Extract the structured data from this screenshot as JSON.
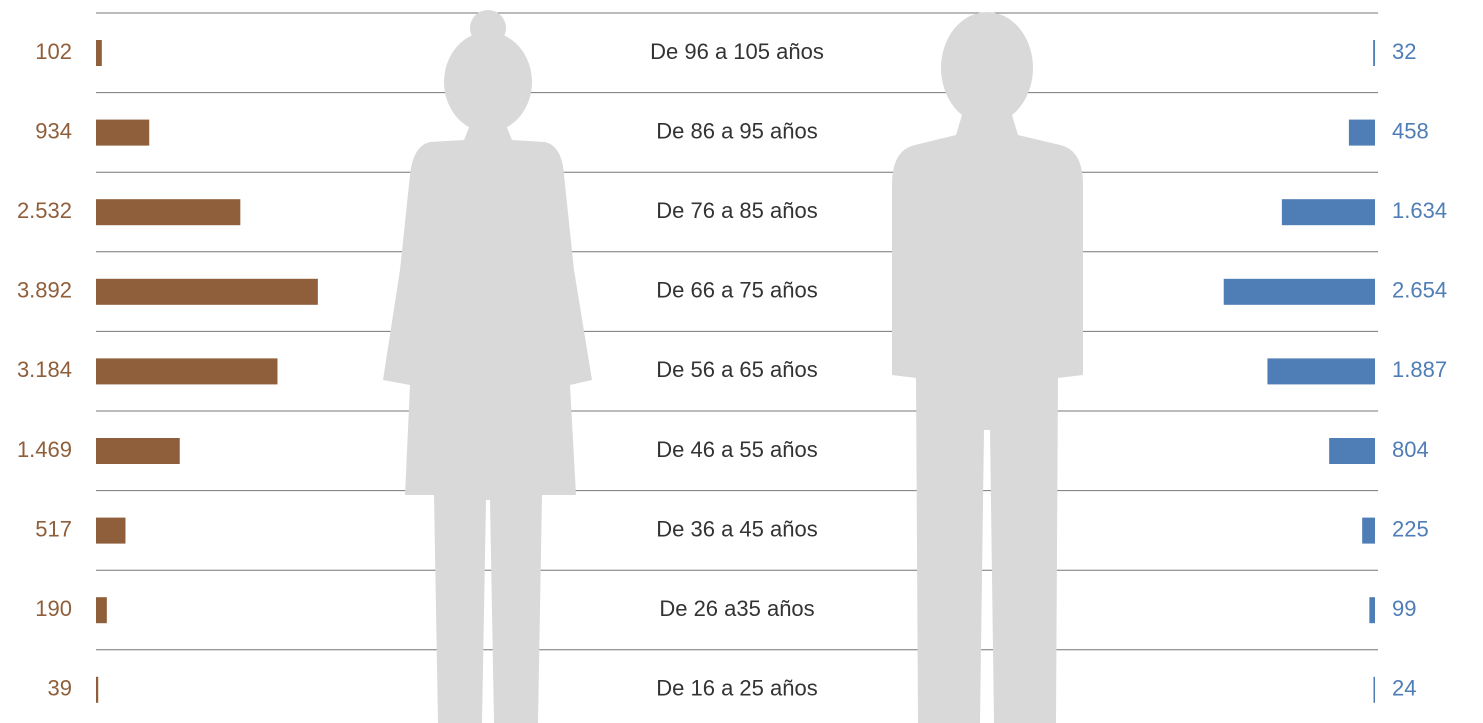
{
  "chart_data": {
    "type": "butterfly",
    "categories": [
      "De 96 a 105 años",
      "De 86 a 95 años",
      "De 76 a 85 años",
      "De 66 a 75 años",
      "De 56 a 65 años",
      "De 46 a 55 años",
      "De 36 a 45 años",
      "De 26 a35 años",
      "De 16 a 25 años"
    ],
    "series": [
      {
        "color": "#8f5e3a",
        "values": [
          102,
          934,
          2532,
          3892,
          3184,
          1469,
          517,
          190,
          39
        ],
        "value_labels": [
          "102",
          "934",
          "2.532",
          "3.892",
          "3.184",
          "1.469",
          "517",
          "190",
          "39"
        ]
      },
      {
        "color": "#4f7db5",
        "values": [
          32,
          458,
          1634,
          2654,
          1887,
          804,
          225,
          99,
          24
        ],
        "value_labels": [
          "32",
          "458",
          "1.634",
          "2.654",
          "1.887",
          "804",
          "225",
          "99",
          "24"
        ]
      }
    ]
  }
}
